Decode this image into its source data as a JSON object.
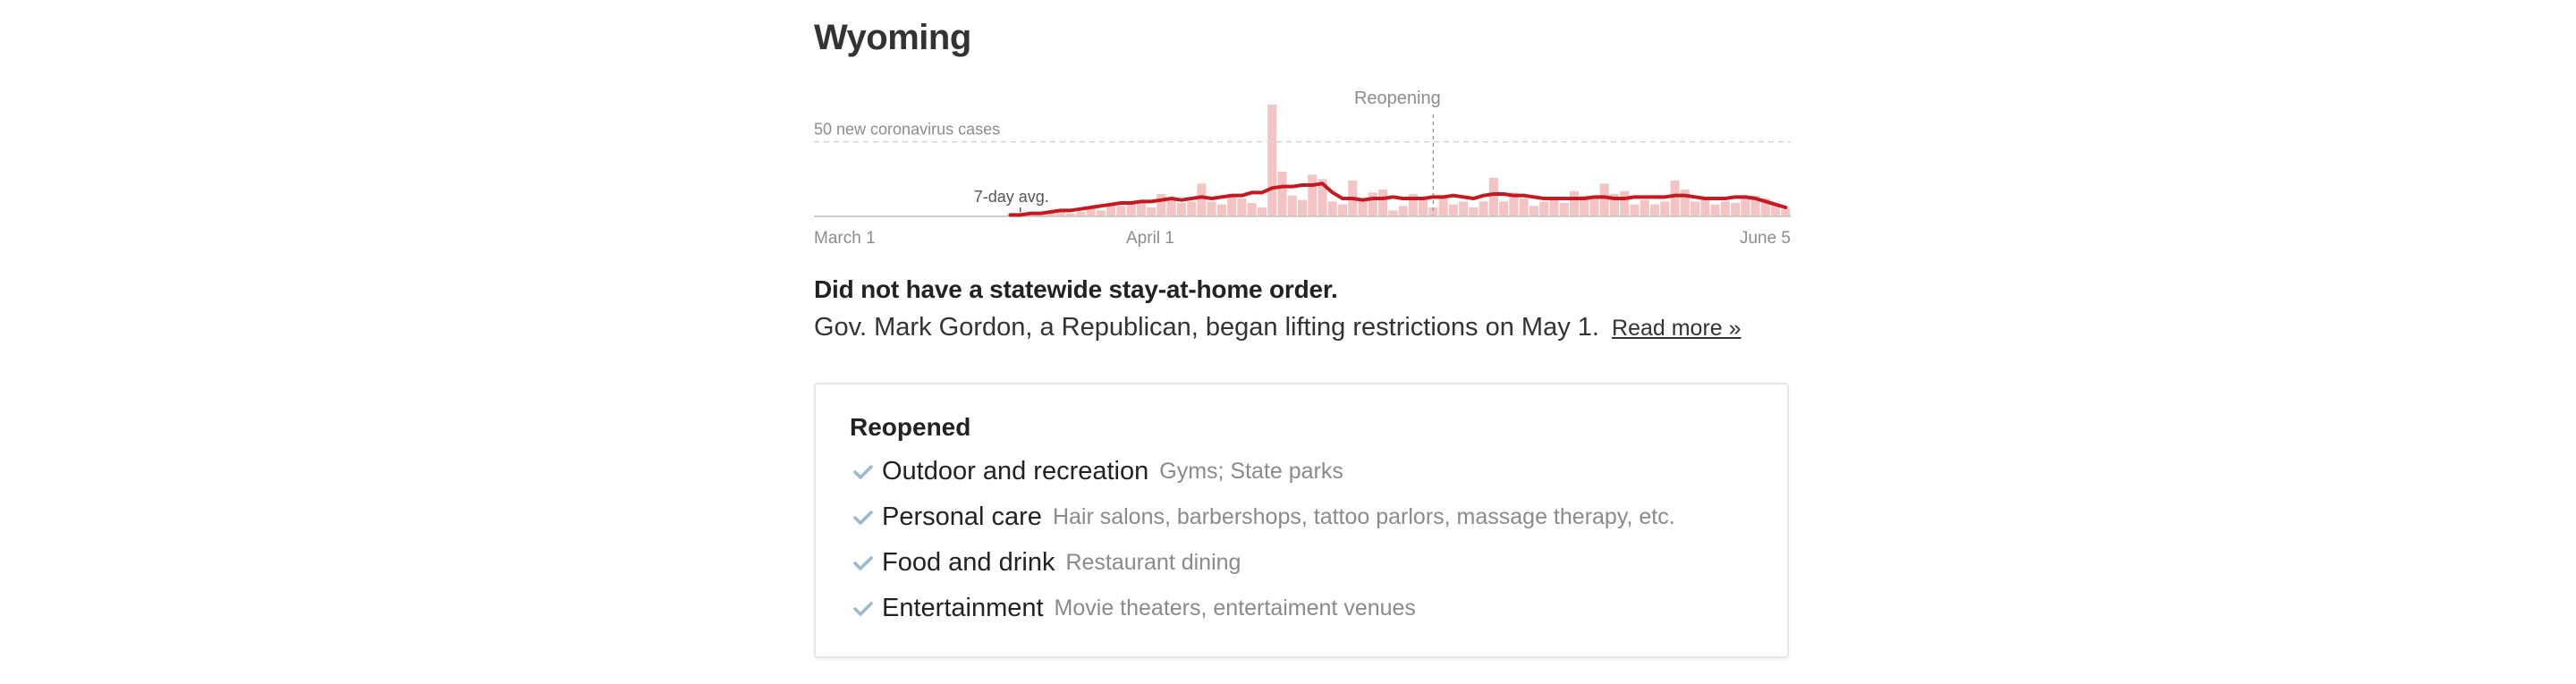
{
  "state": {
    "name": "Wyoming"
  },
  "chart_data": {
    "type": "bar",
    "x_start": "March 1",
    "x_end": "June 5",
    "xticks": [
      "March 1",
      "April 1",
      "June 5"
    ],
    "reference_line": {
      "value": 50,
      "label": "50 new coronavirus cases"
    },
    "annotations": {
      "reopening_label": "Reopening",
      "reopening_date": "May 1",
      "avg_label": "7-day avg."
    },
    "ylim": [
      0,
      90
    ],
    "series": [
      {
        "values": [
          0,
          0,
          0,
          0,
          0,
          0,
          0,
          0,
          0,
          0,
          0,
          0,
          0,
          0,
          0,
          0,
          0,
          0,
          0,
          1,
          0,
          1,
          2,
          3,
          4,
          2,
          3,
          5,
          4,
          8,
          7,
          10,
          9,
          6,
          15,
          12,
          9,
          10,
          22,
          10,
          8,
          13,
          12,
          9,
          6,
          75,
          30,
          14,
          11,
          28,
          25,
          10,
          8,
          24,
          11,
          16,
          18,
          4,
          7,
          15,
          12,
          6,
          14,
          8,
          10,
          6,
          10,
          26,
          10,
          16,
          12,
          7,
          10,
          12,
          9,
          17,
          14,
          12,
          22,
          15,
          17,
          8,
          11,
          8,
          10,
          24,
          18,
          10,
          13,
          8,
          10,
          9,
          12,
          14,
          12,
          8,
          5
        ],
        "avg": [
          0,
          0,
          0,
          0,
          0,
          0,
          0,
          0,
          0,
          0,
          0,
          0,
          0,
          0,
          0,
          0,
          0,
          0,
          0,
          1,
          1,
          2,
          2,
          3,
          4,
          4,
          5,
          6,
          7,
          8,
          9,
          9,
          10,
          10,
          11,
          12,
          11,
          12,
          13,
          12,
          13,
          14,
          14,
          16,
          16,
          19,
          20,
          20,
          21,
          21,
          22,
          16,
          12,
          12,
          11,
          12,
          12,
          13,
          12,
          12,
          12,
          13,
          13,
          14,
          13,
          12,
          14,
          15,
          15,
          14,
          14,
          13,
          12,
          12,
          12,
          12,
          12,
          13,
          13,
          12,
          12,
          13,
          13,
          13,
          13,
          14,
          14,
          13,
          12,
          12,
          12,
          13,
          13,
          12,
          10,
          8,
          6
        ]
      }
    ]
  },
  "headline": "Did not have a statewide stay-at-home order.",
  "summary": {
    "text": "Gov. Mark Gordon, a Republican, began lifting restrictions on May 1.",
    "link": "Read more »"
  },
  "reopened": {
    "title": "Reopened",
    "items": [
      {
        "label": "Outdoor and recreation",
        "detail": "Gyms; State parks"
      },
      {
        "label": "Personal care",
        "detail": "Hair salons, barbershops, tattoo parlors, massage therapy, etc."
      },
      {
        "label": "Food and drink",
        "detail": "Restaurant dining"
      },
      {
        "label": "Entertainment",
        "detail": "Movie theaters, entertaiment venues"
      }
    ]
  },
  "colors": {
    "bar": "#f4c4c4",
    "avg_line": "#c8171e",
    "check": "#9bb8cc",
    "reference": "#d4d4d4",
    "axis": "#cccccc",
    "label": "#8c8c8c"
  }
}
